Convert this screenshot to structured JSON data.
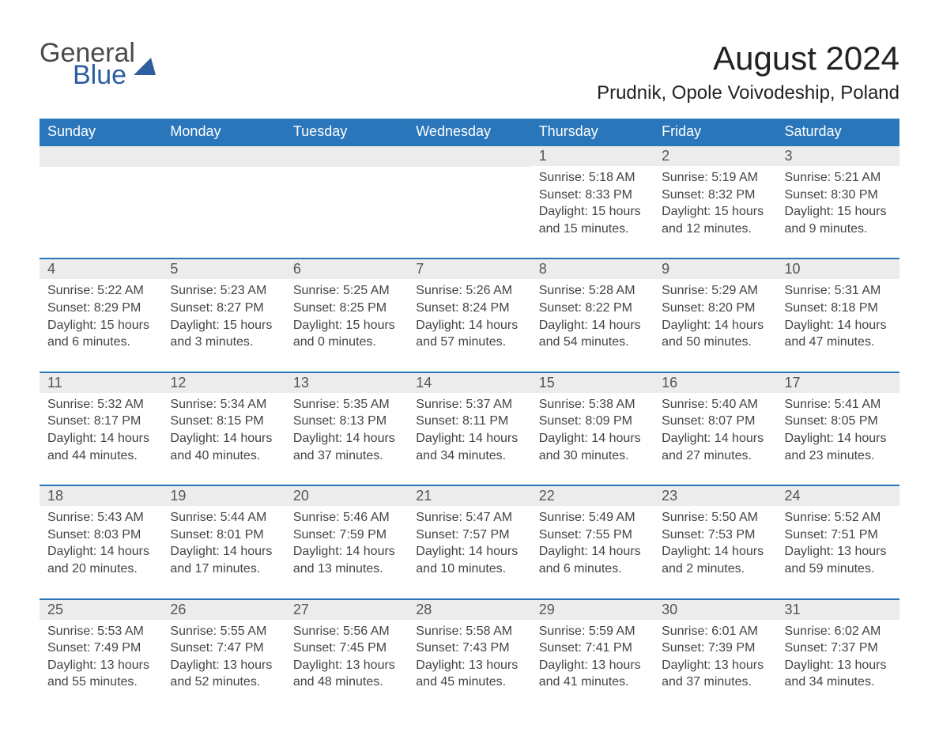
{
  "logo": {
    "word1": "General",
    "word2": "Blue"
  },
  "title": "August 2024",
  "location": "Prudnik, Opole Voivodeship, Poland",
  "colors": {
    "header_bg": "#2a76bb",
    "header_text": "#ffffff",
    "daynum_bg": "#ececec",
    "row_border": "#2a76bb",
    "logo_blue": "#2c5ea0",
    "body_text": "#444444",
    "page_bg": "#ffffff"
  },
  "typography": {
    "title_fontsize": 42,
    "location_fontsize": 24,
    "dayheader_fontsize": 18,
    "daynum_fontsize": 18,
    "body_fontsize": 16
  },
  "day_headers": [
    "Sunday",
    "Monday",
    "Tuesday",
    "Wednesday",
    "Thursday",
    "Friday",
    "Saturday"
  ],
  "labels": {
    "sunrise": "Sunrise: ",
    "sunset": "Sunset: ",
    "daylight": "Daylight: "
  },
  "weeks": [
    [
      null,
      null,
      null,
      null,
      {
        "n": "1",
        "sunrise": "5:18 AM",
        "sunset": "8:33 PM",
        "daylight": "15 hours and 15 minutes."
      },
      {
        "n": "2",
        "sunrise": "5:19 AM",
        "sunset": "8:32 PM",
        "daylight": "15 hours and 12 minutes."
      },
      {
        "n": "3",
        "sunrise": "5:21 AM",
        "sunset": "8:30 PM",
        "daylight": "15 hours and 9 minutes."
      }
    ],
    [
      {
        "n": "4",
        "sunrise": "5:22 AM",
        "sunset": "8:29 PM",
        "daylight": "15 hours and 6 minutes."
      },
      {
        "n": "5",
        "sunrise": "5:23 AM",
        "sunset": "8:27 PM",
        "daylight": "15 hours and 3 minutes."
      },
      {
        "n": "6",
        "sunrise": "5:25 AM",
        "sunset": "8:25 PM",
        "daylight": "15 hours and 0 minutes."
      },
      {
        "n": "7",
        "sunrise": "5:26 AM",
        "sunset": "8:24 PM",
        "daylight": "14 hours and 57 minutes."
      },
      {
        "n": "8",
        "sunrise": "5:28 AM",
        "sunset": "8:22 PM",
        "daylight": "14 hours and 54 minutes."
      },
      {
        "n": "9",
        "sunrise": "5:29 AM",
        "sunset": "8:20 PM",
        "daylight": "14 hours and 50 minutes."
      },
      {
        "n": "10",
        "sunrise": "5:31 AM",
        "sunset": "8:18 PM",
        "daylight": "14 hours and 47 minutes."
      }
    ],
    [
      {
        "n": "11",
        "sunrise": "5:32 AM",
        "sunset": "8:17 PM",
        "daylight": "14 hours and 44 minutes."
      },
      {
        "n": "12",
        "sunrise": "5:34 AM",
        "sunset": "8:15 PM",
        "daylight": "14 hours and 40 minutes."
      },
      {
        "n": "13",
        "sunrise": "5:35 AM",
        "sunset": "8:13 PM",
        "daylight": "14 hours and 37 minutes."
      },
      {
        "n": "14",
        "sunrise": "5:37 AM",
        "sunset": "8:11 PM",
        "daylight": "14 hours and 34 minutes."
      },
      {
        "n": "15",
        "sunrise": "5:38 AM",
        "sunset": "8:09 PM",
        "daylight": "14 hours and 30 minutes."
      },
      {
        "n": "16",
        "sunrise": "5:40 AM",
        "sunset": "8:07 PM",
        "daylight": "14 hours and 27 minutes."
      },
      {
        "n": "17",
        "sunrise": "5:41 AM",
        "sunset": "8:05 PM",
        "daylight": "14 hours and 23 minutes."
      }
    ],
    [
      {
        "n": "18",
        "sunrise": "5:43 AM",
        "sunset": "8:03 PM",
        "daylight": "14 hours and 20 minutes."
      },
      {
        "n": "19",
        "sunrise": "5:44 AM",
        "sunset": "8:01 PM",
        "daylight": "14 hours and 17 minutes."
      },
      {
        "n": "20",
        "sunrise": "5:46 AM",
        "sunset": "7:59 PM",
        "daylight": "14 hours and 13 minutes."
      },
      {
        "n": "21",
        "sunrise": "5:47 AM",
        "sunset": "7:57 PM",
        "daylight": "14 hours and 10 minutes."
      },
      {
        "n": "22",
        "sunrise": "5:49 AM",
        "sunset": "7:55 PM",
        "daylight": "14 hours and 6 minutes."
      },
      {
        "n": "23",
        "sunrise": "5:50 AM",
        "sunset": "7:53 PM",
        "daylight": "14 hours and 2 minutes."
      },
      {
        "n": "24",
        "sunrise": "5:52 AM",
        "sunset": "7:51 PM",
        "daylight": "13 hours and 59 minutes."
      }
    ],
    [
      {
        "n": "25",
        "sunrise": "5:53 AM",
        "sunset": "7:49 PM",
        "daylight": "13 hours and 55 minutes."
      },
      {
        "n": "26",
        "sunrise": "5:55 AM",
        "sunset": "7:47 PM",
        "daylight": "13 hours and 52 minutes."
      },
      {
        "n": "27",
        "sunrise": "5:56 AM",
        "sunset": "7:45 PM",
        "daylight": "13 hours and 48 minutes."
      },
      {
        "n": "28",
        "sunrise": "5:58 AM",
        "sunset": "7:43 PM",
        "daylight": "13 hours and 45 minutes."
      },
      {
        "n": "29",
        "sunrise": "5:59 AM",
        "sunset": "7:41 PM",
        "daylight": "13 hours and 41 minutes."
      },
      {
        "n": "30",
        "sunrise": "6:01 AM",
        "sunset": "7:39 PM",
        "daylight": "13 hours and 37 minutes."
      },
      {
        "n": "31",
        "sunrise": "6:02 AM",
        "sunset": "7:37 PM",
        "daylight": "13 hours and 34 minutes."
      }
    ]
  ]
}
